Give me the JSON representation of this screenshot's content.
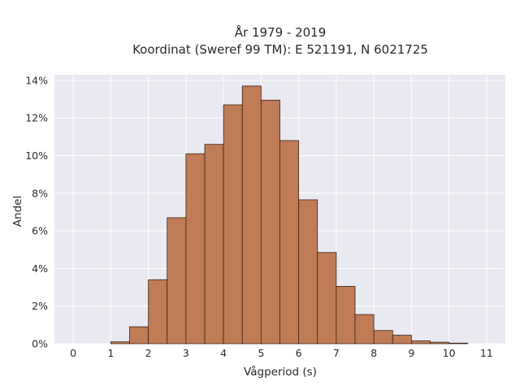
{
  "chart_data": {
    "type": "bar",
    "title_line1": "År 1979 - 2019",
    "title_line2": "Koordinat (Sweref 99 TM): E 521191, N 6021725",
    "xlabel": "Vågperiod (s)",
    "ylabel": "Andel",
    "xlim": [
      -0.5,
      11.5
    ],
    "ylim": [
      0,
      14.3
    ],
    "x_ticks": [
      "0",
      "1",
      "2",
      "3",
      "4",
      "5",
      "6",
      "7",
      "8",
      "9",
      "10",
      "11"
    ],
    "y_ticks": [
      "0%",
      "2%",
      "4%",
      "6%",
      "8%",
      "10%",
      "12%",
      "14%"
    ],
    "bin_width": 0.5,
    "bins": [
      {
        "start": 1.0,
        "value": 0.1
      },
      {
        "start": 1.5,
        "value": 0.9
      },
      {
        "start": 2.0,
        "value": 3.4
      },
      {
        "start": 2.5,
        "value": 6.7
      },
      {
        "start": 3.0,
        "value": 10.1
      },
      {
        "start": 3.5,
        "value": 10.6
      },
      {
        "start": 4.0,
        "value": 12.7
      },
      {
        "start": 4.5,
        "value": 13.7
      },
      {
        "start": 5.0,
        "value": 12.95
      },
      {
        "start": 5.5,
        "value": 10.8
      },
      {
        "start": 6.0,
        "value": 7.65
      },
      {
        "start": 6.5,
        "value": 4.85
      },
      {
        "start": 7.0,
        "value": 3.05
      },
      {
        "start": 7.5,
        "value": 1.55
      },
      {
        "start": 8.0,
        "value": 0.7
      },
      {
        "start": 8.5,
        "value": 0.45
      },
      {
        "start": 9.0,
        "value": 0.15
      },
      {
        "start": 9.5,
        "value": 0.08
      },
      {
        "start": 10.0,
        "value": 0.03
      }
    ],
    "grid": true,
    "colors": {
      "bar_fill": "#bf7c56",
      "bar_stroke": "#3f2418",
      "plot_bg": "#e9e9f1",
      "grid": "#ffffff"
    }
  }
}
